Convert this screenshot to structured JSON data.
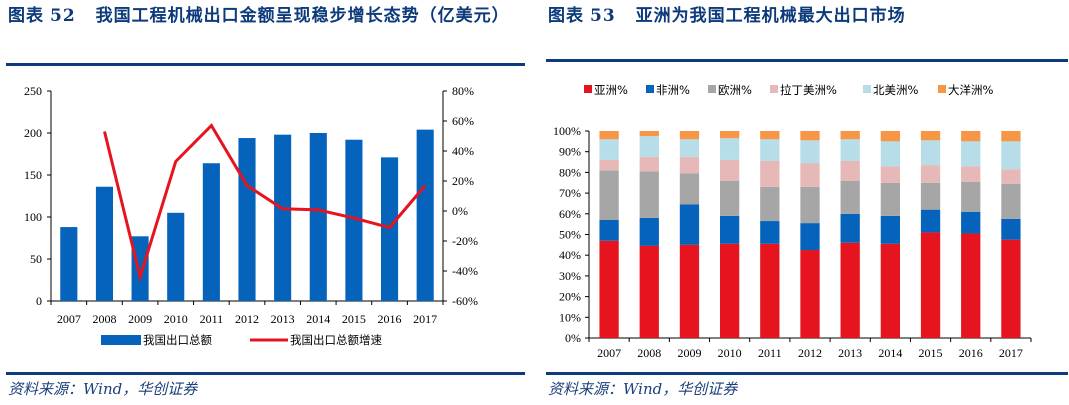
{
  "left_panel": {
    "title_prefix": "图表",
    "title_number": "52",
    "title_text": "我国工程机械出口金额呈现稳步增长态势（亿美元）",
    "source": "资料来源：Wind，华创证券"
  },
  "right_panel": {
    "title_prefix": "图表",
    "title_number": "53",
    "title_text": "亚洲为我国工程机械最大出口市场",
    "source": "资料来源：Wind，华创证券"
  },
  "colors": {
    "title_blue": "#0d3a7a",
    "bar_blue": "#0563bb",
    "line_red": "#e5141f",
    "asia": "#e5141f",
    "africa": "#0563bb",
    "europe": "#a6a6a6",
    "latin_america": "#e6b8b7",
    "north_america": "#b7dde8",
    "oceania": "#f79646"
  },
  "chart_data": [
    {
      "type": "bar+line",
      "title": "我国工程机械出口金额呈现稳步增长态势（亿美元）",
      "categories": [
        "2007",
        "2008",
        "2009",
        "2010",
        "2011",
        "2012",
        "2013",
        "2014",
        "2015",
        "2016",
        "2017"
      ],
      "series": [
        {
          "name": "我国出口总额",
          "type": "bar",
          "axis": "left",
          "values": [
            88,
            136,
            77,
            105,
            164,
            194,
            198,
            200,
            192,
            171,
            204
          ]
        },
        {
          "name": "我国出口总额增速",
          "type": "line",
          "axis": "right",
          "unit": "%",
          "values": [
            null,
            53,
            -44,
            33,
            57,
            17,
            1.5,
            0.7,
            -4.7,
            -11,
            17
          ]
        }
      ],
      "y_left": {
        "range": [
          0,
          250
        ],
        "ticks": [
          "0",
          "50",
          "100",
          "150",
          "200",
          "250"
        ]
      },
      "y_right": {
        "range": [
          -60,
          80
        ],
        "ticks": [
          "-60%",
          "-40%",
          "-20%",
          "0%",
          "20%",
          "40%",
          "60%",
          "80%"
        ]
      },
      "legend": {
        "placement": "bottom",
        "entries": [
          "我国出口总额",
          "我国出口总额增速"
        ]
      },
      "grid": false
    },
    {
      "type": "bar",
      "stacked": true,
      "title": "亚洲为我国工程机械最大出口市场",
      "categories": [
        "2007",
        "2008",
        "2009",
        "2010",
        "2011",
        "2012",
        "2013",
        "2014",
        "2015",
        "2016",
        "2017"
      ],
      "series": [
        {
          "name": "亚洲%",
          "key": "asia",
          "values": [
            47,
            44.5,
            45,
            45.5,
            45.5,
            42.5,
            46,
            45.5,
            51,
            50.5,
            47.5
          ]
        },
        {
          "name": "非洲%",
          "key": "africa",
          "values": [
            10,
            13.5,
            19.5,
            13.5,
            11,
            13,
            14,
            13.5,
            11,
            10.5,
            10
          ]
        },
        {
          "name": "欧洲%",
          "key": "europe",
          "values": [
            24,
            22.5,
            15,
            17,
            16.5,
            17.5,
            16,
            16,
            13,
            14.5,
            17
          ]
        },
        {
          "name": "拉丁美洲%",
          "key": "latin_america",
          "values": [
            5,
            7,
            8,
            10,
            12.5,
            11.5,
            9.5,
            8,
            8.5,
            7.5,
            7
          ]
        },
        {
          "name": "北美洲%",
          "key": "north_america",
          "values": [
            10,
            10,
            8.5,
            10.5,
            10.5,
            11,
            10.5,
            12,
            12,
            12,
            13.5
          ]
        },
        {
          "name": "大洋洲%",
          "key": "oceania",
          "values": [
            4,
            2.5,
            4,
            3.5,
            4,
            4.5,
            4,
            5,
            4.5,
            5,
            5
          ]
        }
      ],
      "y": {
        "range": [
          0,
          100
        ],
        "ticks": [
          "0%",
          "10%",
          "20%",
          "30%",
          "40%",
          "50%",
          "60%",
          "70%",
          "80%",
          "90%",
          "100%"
        ]
      },
      "legend": {
        "placement": "top"
      },
      "grid": false
    }
  ]
}
